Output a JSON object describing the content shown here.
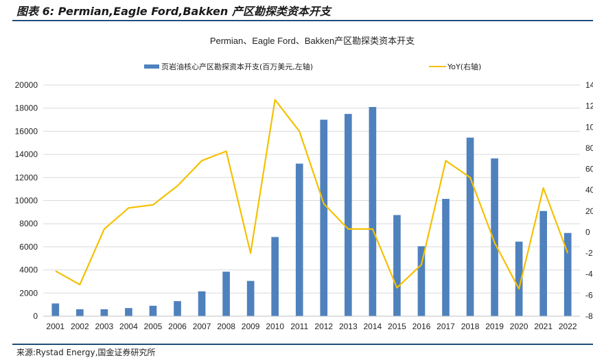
{
  "figure_title": "图表 6:  Permian,Eagle Ford,Bakken 产区勘探类资本开支",
  "source": "来源:Rystad Energy,国金证券研究所",
  "colors": {
    "bar": "#4f81bd",
    "line": "#f5c000",
    "rule": "#1f4e79"
  },
  "chart_data": {
    "type": "bar",
    "title": "Permian、Eagle Ford、Bakken产区勘探类资本开支",
    "categories": [
      "2001",
      "2002",
      "2003",
      "2004",
      "2005",
      "2006",
      "2007",
      "2008",
      "2009",
      "2010",
      "2011",
      "2012",
      "2013",
      "2014",
      "2015",
      "2016",
      "2017",
      "2018",
      "2019",
      "2020",
      "2021",
      "2022"
    ],
    "series": [
      {
        "name": "页岩油核心产区勘探资本开支(百万美元,左轴)",
        "type": "bar",
        "axis": "left",
        "values": [
          1100,
          600,
          600,
          700,
          900,
          1300,
          2150,
          3850,
          3050,
          6850,
          13200,
          17000,
          17500,
          18100,
          8750,
          6050,
          10150,
          15450,
          13650,
          6450,
          9100,
          7200
        ]
      },
      {
        "name": "YoY(右轴)",
        "type": "line",
        "axis": "right",
        "values": [
          -37,
          -50,
          3,
          23,
          26,
          44,
          68,
          77,
          -20,
          126,
          96,
          27,
          3,
          3,
          -53,
          -31,
          68,
          52,
          -10,
          -54,
          42,
          -20
        ]
      }
    ],
    "left_axis": {
      "ylim": [
        0,
        20000
      ],
      "ticks": [
        "0",
        "2000",
        "4000",
        "6000",
        "8000",
        "10000",
        "12000",
        "14000",
        "16000",
        "18000",
        "20000"
      ]
    },
    "right_axis": {
      "ylim": [
        -80,
        140
      ],
      "ticks": [
        "-80",
        "-60",
        "-40",
        "-20",
        "0",
        "20",
        "40",
        "60",
        "80",
        "100",
        "120",
        "140"
      ]
    },
    "legend_position": "top",
    "grid": "horizontal"
  }
}
